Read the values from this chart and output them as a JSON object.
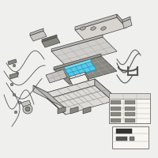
{
  "bg_color": "#efefed",
  "fig_width": 2.0,
  "fig_height": 2.0,
  "dpi": 100,
  "edge_color": "#444444",
  "edge_lw": 0.5,
  "grid_color": "#888888",
  "wire_color": "#555555",
  "highlight_color": "#5bc8e8",
  "highlight_dark": "#2299bb",
  "gray_face": "#c8c6c2",
  "dark_gray": "#888880",
  "light_gray": "#dddbd6",
  "mid_gray": "#b8b6b2",
  "white_face": "#f0eeea"
}
